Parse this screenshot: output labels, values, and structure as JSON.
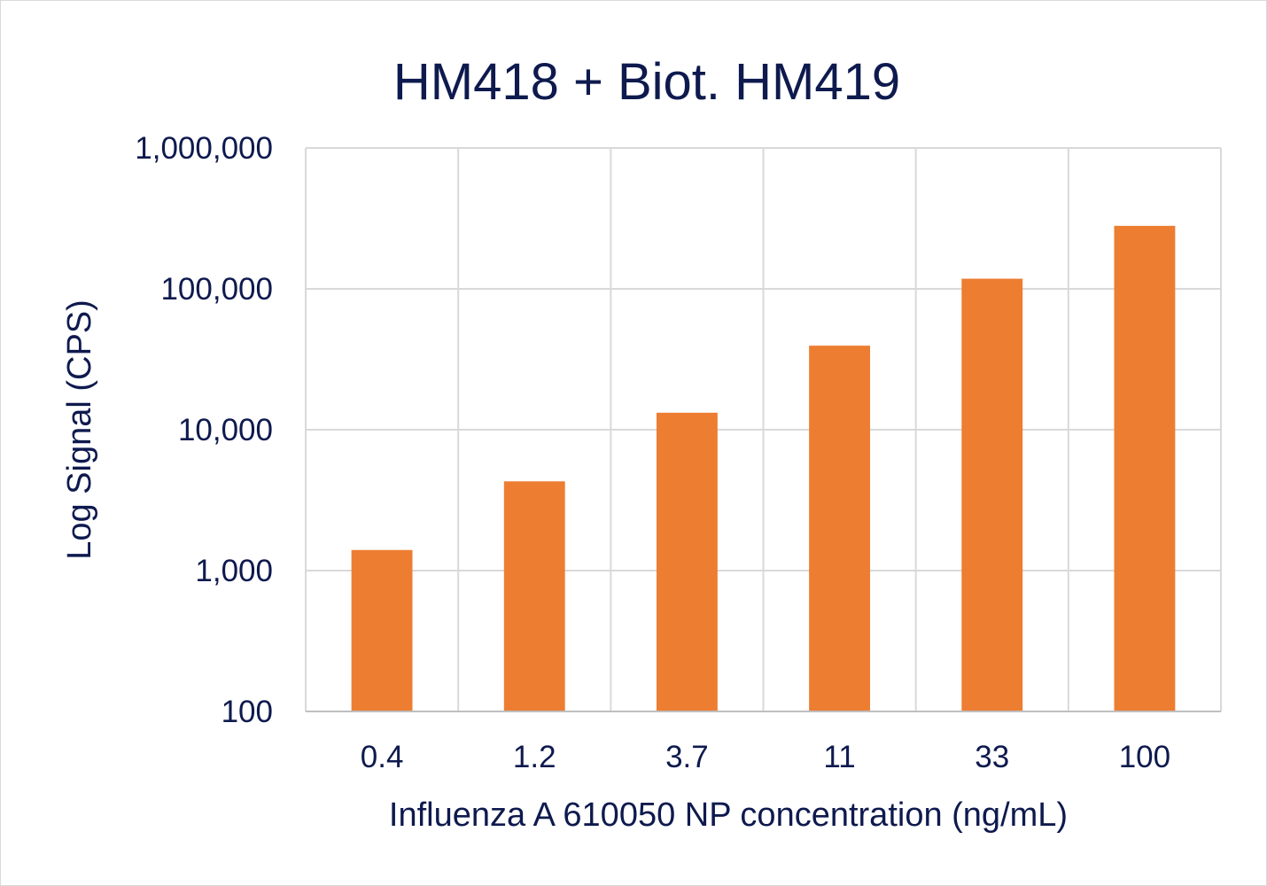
{
  "chart_data": {
    "type": "bar",
    "title": "HM418 + Biot. HM419",
    "xlabel": "Influenza A 610050 NP concentration (ng/mL)",
    "ylabel": "Log Signal (CPS)",
    "categories": [
      "0.4",
      "1.2",
      "3.7",
      "11",
      "33",
      "100"
    ],
    "values": [
      1400,
      4300,
      13200,
      39500,
      118000,
      280000
    ],
    "y_scale": "log",
    "ylim": [
      100,
      1000000
    ],
    "y_ticks": [
      100,
      1000,
      10000,
      100000,
      1000000
    ],
    "y_tick_labels": [
      "100",
      "1,000",
      "10,000",
      "100,000",
      "1,000,000"
    ],
    "grid": true,
    "legend": "none"
  },
  "colors": {
    "bar": "#ed7d31",
    "text": "#0e1a4e",
    "grid": "#d9d9d9",
    "axis": "#bfbfbf"
  }
}
